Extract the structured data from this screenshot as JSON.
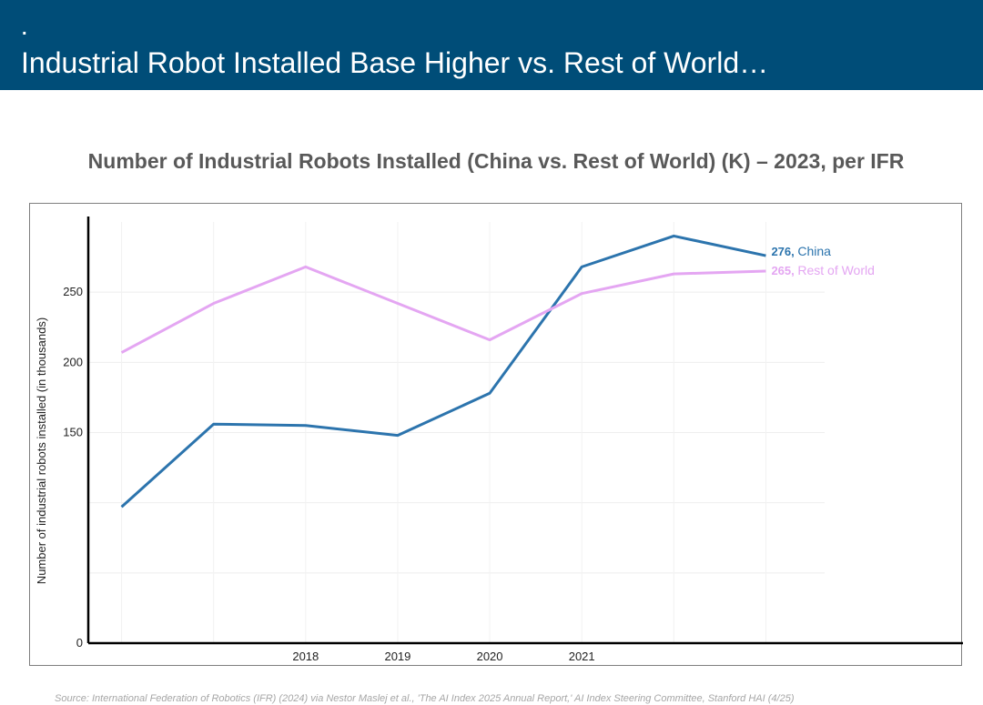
{
  "header": {
    "bullet": ".",
    "title": "Industrial Robot Installed Base Higher vs. Rest of World…"
  },
  "chart_title": "Number of Industrial Robots Installed (China vs. Rest of World) (K) – 2023, per IFR",
  "source": "Source: International Federation of Robotics (IFR) (2024) via Nestor Maslej et al., 'The AI Index 2025 Annual Report,' AI Index Steering Committee, Stanford HAI (4/25)",
  "colors": {
    "header_bg": "#004d78",
    "china": "#2c74ad",
    "rest_of_world": "#e4a6f2"
  },
  "chart_data": {
    "type": "line",
    "title": "Number of Industrial Robots Installed (China vs. Rest of World) (K) – 2023, per IFR",
    "ylabel": "Number of industrial robots installed (in thousands)",
    "xlabel": "",
    "x": [
      2016,
      2017,
      2018,
      2019,
      2020,
      2021,
      2022,
      2023
    ],
    "x_tick_labels": [
      "",
      "",
      "2018",
      "2019",
      "2020",
      "2021",
      "",
      ""
    ],
    "y_ticks": [
      0,
      150,
      200,
      250
    ],
    "ylim": [
      0,
      300
    ],
    "grid": true,
    "series": [
      {
        "name": "China",
        "color": "#2c74ad",
        "values": [
          97,
          156,
          155,
          148,
          178,
          268,
          290,
          276
        ],
        "end_label": "276"
      },
      {
        "name": "Rest of World",
        "color": "#e4a6f2",
        "values": [
          207,
          242,
          268,
          242,
          216,
          249,
          263,
          265
        ],
        "end_label": "265"
      }
    ]
  }
}
